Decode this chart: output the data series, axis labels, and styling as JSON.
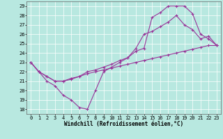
{
  "xlabel": "Windchill (Refroidissement éolien,°C)",
  "bg_color": "#b8e8e0",
  "grid_color": "#ffffff",
  "line_color": "#993399",
  "xlim": [
    -0.5,
    23.5
  ],
  "ylim": [
    17.5,
    29.5
  ],
  "xticks": [
    0,
    1,
    2,
    3,
    4,
    5,
    6,
    7,
    8,
    9,
    10,
    11,
    12,
    13,
    14,
    15,
    16,
    17,
    18,
    19,
    20,
    21,
    22,
    23
  ],
  "yticks": [
    18,
    19,
    20,
    21,
    22,
    23,
    24,
    25,
    26,
    27,
    28,
    29
  ],
  "line1": {
    "x": [
      0,
      1,
      2,
      3,
      4,
      5,
      6,
      7,
      8,
      9,
      10,
      11,
      12,
      13,
      14,
      15,
      16,
      17,
      18,
      19,
      20,
      21,
      22,
      23
    ],
    "y": [
      23,
      22,
      21,
      20.5,
      19.5,
      19,
      18.2,
      18,
      20,
      22,
      22.5,
      23,
      23.5,
      24.2,
      24.5,
      27.8,
      28.3,
      29,
      29,
      29,
      28.2,
      26.0,
      25.5,
      24.8
    ]
  },
  "line2": {
    "x": [
      0,
      1,
      2,
      3,
      4,
      5,
      6,
      7,
      8,
      9,
      10,
      11,
      12,
      13,
      14,
      15,
      16,
      17,
      18,
      19,
      20,
      21,
      22,
      23
    ],
    "y": [
      23,
      22,
      21.5,
      21,
      21,
      21.3,
      21.5,
      22,
      22.2,
      22.5,
      22.8,
      23.2,
      23.5,
      24.5,
      26,
      26.3,
      26.8,
      27.3,
      28.0,
      27.0,
      26.5,
      25.5,
      25.8,
      24.8
    ]
  },
  "line3": {
    "x": [
      0,
      1,
      2,
      3,
      4,
      5,
      6,
      7,
      8,
      9,
      10,
      11,
      12,
      13,
      14,
      15,
      16,
      17,
      18,
      19,
      20,
      21,
      22,
      23
    ],
    "y": [
      23,
      22,
      21.5,
      21,
      21,
      21.2,
      21.5,
      21.8,
      22,
      22.2,
      22.4,
      22.6,
      22.8,
      23,
      23.2,
      23.4,
      23.6,
      23.8,
      24.0,
      24.2,
      24.4,
      24.6,
      24.8,
      24.8
    ]
  },
  "marker": "+",
  "markersize": 3,
  "linewidth": 0.8,
  "tick_fontsize": 5,
  "xlabel_fontsize": 5.5
}
